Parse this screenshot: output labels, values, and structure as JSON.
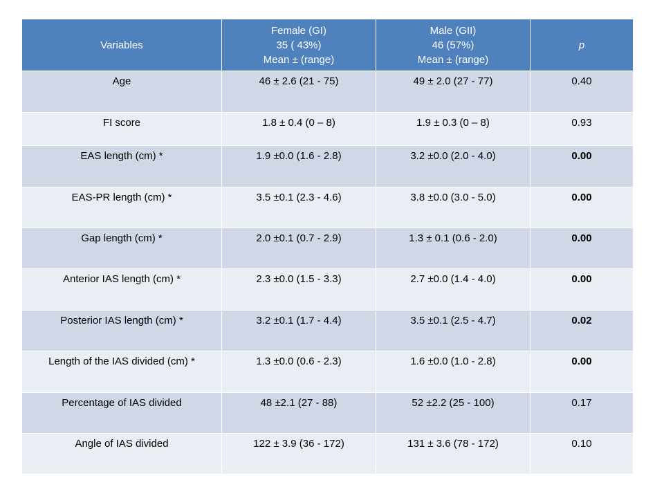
{
  "header": {
    "variables": "Variables",
    "female": [
      "Female  (GI)",
      "35 ( 43%)",
      "Mean ±  (range)"
    ],
    "male": [
      "Male  (GII)",
      "46 (57%)",
      "Mean ±  (range)"
    ],
    "p": "p"
  },
  "rows": [
    {
      "variable": "Age",
      "female": "46 ± 2.6 (21 - 75)",
      "male": "49 ± 2.0 (27 - 77)",
      "p": "0.40",
      "p_bold": false
    },
    {
      "variable": "FI score",
      "female": "1.8 ± 0.4 (0 – 8)",
      "male": "1.9 ± 0.3 (0 – 8)",
      "p": "0.93",
      "p_bold": false
    },
    {
      "variable": "EAS length (cm) *",
      "female": "1.9 ±0.0 (1.6 - 2.8)",
      "male": "3.2 ±0.0 (2.0 - 4.0)",
      "p": "0.00",
      "p_bold": true
    },
    {
      "variable": "EAS-PR length (cm) *",
      "female": "3.5 ±0.1 (2.3 - 4.6)",
      "male": "3.8 ±0.0 (3.0 - 5.0)",
      "p": "0.00",
      "p_bold": true
    },
    {
      "variable": "Gap length (cm) *",
      "female": "2.0 ±0.1 (0.7 - 2.9)",
      "male": "1.3 ± 0.1 (0.6 - 2.0)",
      "p": "0.00",
      "p_bold": true
    },
    {
      "variable": "Anterior IAS length (cm) *",
      "female": "2.3 ±0.0 (1.5 - 3.3)",
      "male": "2.7 ±0.0 (1.4 - 4.0)",
      "p": "0.00",
      "p_bold": true
    },
    {
      "variable": "Posterior IAS length (cm) *",
      "female": "3.2 ±0.1 (1.7 - 4.4)",
      "male": "3.5 ±0.1 (2.5 - 4.7)",
      "p": "0.02",
      "p_bold": true
    },
    {
      "variable": "Length of the IAS divided  (cm) *",
      "female": "1.3 ±0.0  (0.6 - 2.3)",
      "male": "1.6 ±0.0 (1.0 - 2.8)",
      "p": "0.00",
      "p_bold": true
    },
    {
      "variable": "Percentage of IAS divided",
      "female": "48  ±2.1  (27 - 88)",
      "male": "52 ±2.2 (25 - 100)",
      "p": "0.17",
      "p_bold": false
    },
    {
      "variable": "Angle of  IAS divided",
      "female": "122  ± 3.9 (36 - 172)",
      "male": "131 ± 3.6 (78 - 172)",
      "p": "0.10",
      "p_bold": false
    }
  ]
}
